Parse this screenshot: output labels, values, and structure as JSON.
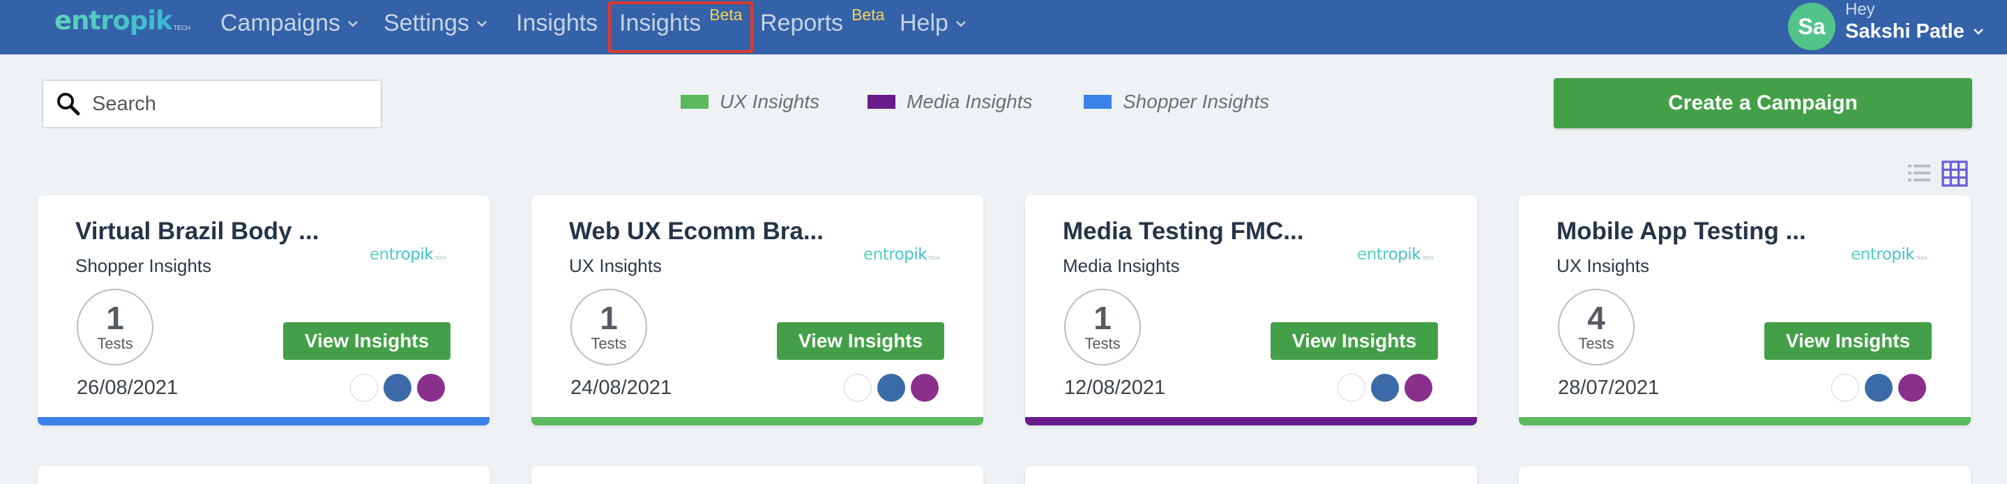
{
  "nav": {
    "logo_text": "entropik",
    "logo_sub": "TECH",
    "items": [
      {
        "label": "Campaigns",
        "dropdown": true
      },
      {
        "label": "Settings",
        "dropdown": true
      },
      {
        "label": "Insights",
        "dropdown": false
      },
      {
        "label": "Insights",
        "badge": "Beta",
        "highlighted": true
      },
      {
        "label": "Reports",
        "badge": "Beta"
      },
      {
        "label": "Help",
        "dropdown": true
      }
    ],
    "user": {
      "initials": "Sa",
      "greeting": "Hey",
      "name": "Sakshi Patle"
    }
  },
  "toolbar": {
    "search_placeholder": "Search",
    "legend": [
      {
        "label": "UX Insights",
        "color": "#5cb85c"
      },
      {
        "label": "Media Insights",
        "color": "#6a1b8a"
      },
      {
        "label": "Shopper Insights",
        "color": "#3b82e8"
      }
    ],
    "create_label": "Create a Campaign"
  },
  "cards": [
    {
      "title": "Virtual Brazil Body ...",
      "type": "Shopper Insights",
      "logo": "entropik",
      "logo_sub": "TECH",
      "tests": "1",
      "tests_label": "Tests",
      "view_label": "View Insights",
      "date": "26/08/2021",
      "bar_color": "#3b82e8"
    },
    {
      "title": "Web UX Ecomm Bra...",
      "type": "UX Insights",
      "logo": "entropik",
      "logo_sub": "TECH",
      "tests": "1",
      "tests_label": "Tests",
      "view_label": "View Insights",
      "date": "24/08/2021",
      "bar_color": "#5cb85c"
    },
    {
      "title": "Media Testing FMC...",
      "type": "Media Insights",
      "logo": "entropik",
      "logo_sub": "TECH",
      "tests": "1",
      "tests_label": "Tests",
      "view_label": "View Insights",
      "date": "12/08/2021",
      "bar_color": "#6a1b8a"
    },
    {
      "title": "Mobile App Testing ...",
      "type": "UX Insights",
      "logo": "entropik",
      "logo_sub": "TECH",
      "tests": "4",
      "tests_label": "Tests",
      "view_label": "View Insights",
      "date": "28/07/2021",
      "bar_color": "#5cb85c"
    }
  ],
  "colors": {
    "nav_bg": "#3462a8",
    "accent_green": "#43a048",
    "highlight_red": "#e0392e"
  },
  "icons": [
    "search-icon",
    "chevron-down-icon",
    "list-view-icon",
    "grid-view-icon"
  ]
}
